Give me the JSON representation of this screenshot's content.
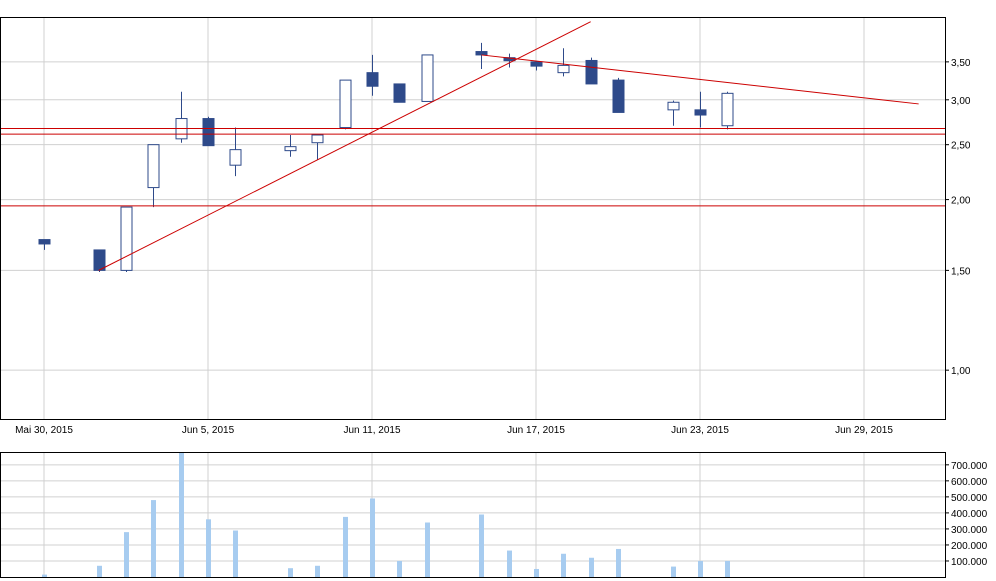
{
  "chart_data": [
    {
      "type": "candlestick",
      "title": "",
      "xlabel": "",
      "ylabel": "",
      "scale": "log",
      "grid": true,
      "ylim": [
        0.82,
        4.2
      ],
      "y_ticks": [
        "3,50",
        "3,00",
        "2,50",
        "2,00",
        "1,50",
        "1,00"
      ],
      "y_tick_values": [
        3.5,
        3.0,
        2.5,
        2.0,
        1.5,
        1.0
      ],
      "x_tick_labels": [
        "Mai 30, 2015",
        "Jun 5, 2015",
        "Jun 11, 2015",
        "Jun 17, 2015",
        "Jun 23, 2015",
        "Jun 29, 2015"
      ],
      "x_tick_dates": [
        "2015-05-30",
        "2015-06-05",
        "2015-06-11",
        "2015-06-17",
        "2015-06-23",
        "2015-06-29"
      ],
      "candles": [
        {
          "date": "2015-05-30",
          "open": 1.7,
          "high": 1.7,
          "low": 1.63,
          "close": 1.67
        },
        {
          "date": "2015-06-01",
          "open": 1.63,
          "high": 1.63,
          "low": 1.49,
          "close": 1.5
        },
        {
          "date": "2015-06-02",
          "open": 1.5,
          "high": 1.94,
          "low": 1.49,
          "close": 1.94
        },
        {
          "date": "2015-06-03",
          "open": 2.1,
          "high": 2.5,
          "low": 1.94,
          "close": 2.5
        },
        {
          "date": "2015-06-04",
          "open": 2.56,
          "high": 3.1,
          "low": 2.52,
          "close": 2.78
        },
        {
          "date": "2015-06-05",
          "open": 2.78,
          "high": 2.8,
          "low": 2.49,
          "close": 2.49
        },
        {
          "date": "2015-06-06",
          "open": 2.3,
          "high": 2.68,
          "low": 2.2,
          "close": 2.45
        },
        {
          "date": "2015-06-08",
          "open": 2.44,
          "high": 2.6,
          "low": 2.38,
          "close": 2.48
        },
        {
          "date": "2015-06-09",
          "open": 2.52,
          "high": 2.6,
          "low": 2.35,
          "close": 2.6
        },
        {
          "date": "2015-06-10",
          "open": 2.68,
          "high": 3.25,
          "low": 2.66,
          "close": 3.25
        },
        {
          "date": "2015-06-11",
          "open": 3.35,
          "high": 3.6,
          "low": 3.05,
          "close": 3.17
        },
        {
          "date": "2015-06-12",
          "open": 3.2,
          "high": 3.2,
          "low": 2.97,
          "close": 2.97
        },
        {
          "date": "2015-06-13",
          "open": 2.98,
          "high": 3.6,
          "low": 2.98,
          "close": 3.6
        },
        {
          "date": "2015-06-15",
          "open": 3.65,
          "high": 3.78,
          "low": 3.4,
          "close": 3.6
        },
        {
          "date": "2015-06-16",
          "open": 3.56,
          "high": 3.62,
          "low": 3.42,
          "close": 3.53
        },
        {
          "date": "2015-06-17",
          "open": 3.5,
          "high": 3.5,
          "low": 3.38,
          "close": 3.44
        },
        {
          "date": "2015-06-18",
          "open": 3.35,
          "high": 3.7,
          "low": 3.3,
          "close": 3.45
        },
        {
          "date": "2015-06-19",
          "open": 3.52,
          "high": 3.56,
          "low": 3.2,
          "close": 3.2
        },
        {
          "date": "2015-06-20",
          "open": 3.25,
          "high": 3.28,
          "low": 2.85,
          "close": 2.85
        },
        {
          "date": "2015-06-22",
          "open": 2.88,
          "high": 2.99,
          "low": 2.7,
          "close": 2.97
        },
        {
          "date": "2015-06-23",
          "open": 2.88,
          "high": 3.1,
          "low": 2.68,
          "close": 2.82
        },
        {
          "date": "2015-06-24",
          "open": 2.7,
          "high": 3.1,
          "low": 2.66,
          "close": 3.08
        }
      ],
      "lines": [
        {
          "kind": "horizontal",
          "y": 2.67,
          "color": "#cc0000"
        },
        {
          "kind": "horizontal",
          "y": 2.61,
          "color": "#cc0000"
        },
        {
          "kind": "horizontal",
          "y": 1.95,
          "color": "#cc0000"
        },
        {
          "kind": "trend",
          "from": {
            "date": "2015-06-01",
            "y": 1.5
          },
          "to": {
            "date": "2015-06-19",
            "y": 4.12
          },
          "color": "#cc0000"
        },
        {
          "kind": "trend",
          "from": {
            "date": "2015-06-15",
            "y": 3.6
          },
          "to": {
            "date": "2015-07-01",
            "y": 2.95
          },
          "color": "#cc0000"
        }
      ],
      "colors": {
        "up_fill": "#ffffff",
        "down_fill": "#2e4a8a",
        "candle_border": "#2e4a8a",
        "grid": "#d0d0d0",
        "line": "#cc0000"
      }
    },
    {
      "type": "bar",
      "title": "",
      "xlabel": "",
      "ylabel": "",
      "ylim": [
        0,
        780000
      ],
      "y_ticks": [
        "700.000",
        "600.000",
        "500.000",
        "400.000",
        "300.000",
        "200.000",
        "100.000"
      ],
      "y_tick_values": [
        700000,
        600000,
        500000,
        400000,
        300000,
        200000,
        100000
      ],
      "grid": true,
      "color": "#a7ccf0",
      "series": [
        {
          "dates": [
            "2015-05-30",
            "2015-06-01",
            "2015-06-02",
            "2015-06-03",
            "2015-06-04",
            "2015-06-05",
            "2015-06-06",
            "2015-06-08",
            "2015-06-09",
            "2015-06-10",
            "2015-06-11",
            "2015-06-12",
            "2015-06-13",
            "2015-06-15",
            "2015-06-16",
            "2015-06-17",
            "2015-06-18",
            "2015-06-19",
            "2015-06-20",
            "2015-06-22",
            "2015-06-23",
            "2015-06-24"
          ],
          "values": [
            15000,
            70000,
            280000,
            480000,
            790000,
            360000,
            290000,
            55000,
            70000,
            375000,
            490000,
            100000,
            340000,
            390000,
            165000,
            50000,
            145000,
            120000,
            175000,
            65000,
            100000,
            100000
          ]
        }
      ]
    }
  ]
}
